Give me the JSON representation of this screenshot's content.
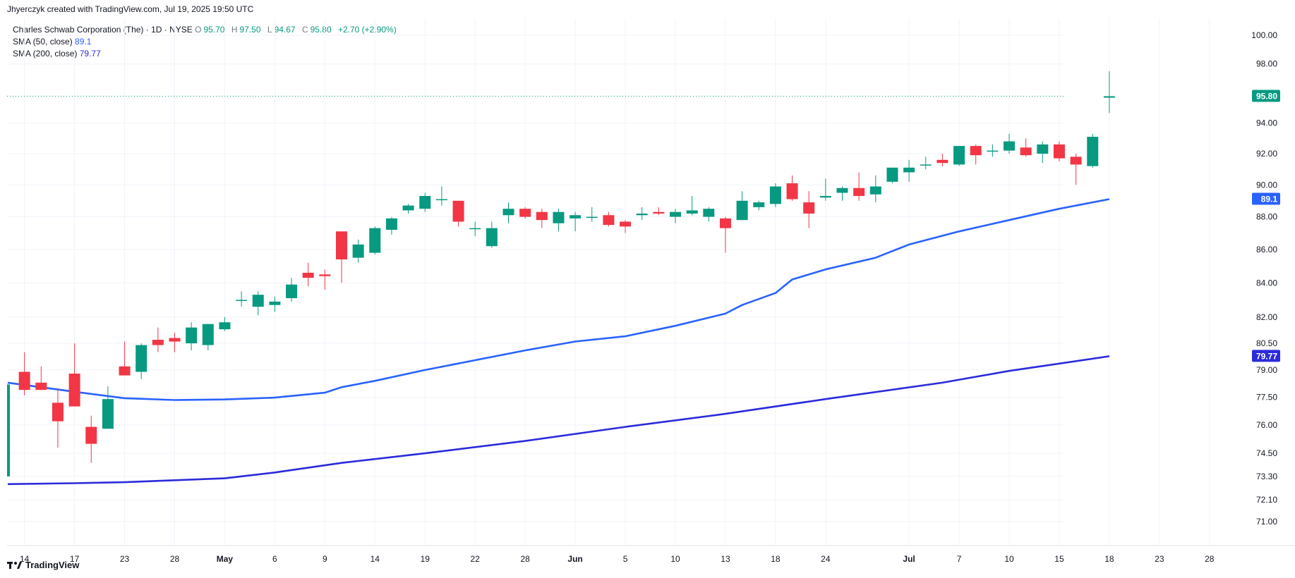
{
  "header": {
    "attribution": "Jhyerczyk created with TradingView.com, Jul 19, 2025 19:50 UTC"
  },
  "legend": {
    "symbol": "Charles Schwab Corporation (The) · 1D · NYSE",
    "open_label": "O",
    "open": "95.70",
    "high_label": "H",
    "high": "97.50",
    "low_label": "L",
    "low": "94.67",
    "close_label": "C",
    "close": "95.80",
    "change": "+2.70 (+2.90%)",
    "sma50_name": "SMA (50, close)",
    "sma50_value": "89.1",
    "sma200_name": "SMA (200, close)",
    "sma200_value": "79.77"
  },
  "footer": {
    "brand": "TradingView",
    "logo": "tradingview-logo-icon"
  },
  "colors": {
    "up": "#089981",
    "down": "#f23645",
    "sma50": "#2962ff",
    "sma200": "#2b2bdb",
    "grid": "#f0f3fa"
  },
  "chart_data": {
    "type": "candlestick",
    "title": "Charles Schwab Corporation (The) · 1D · NYSE",
    "y_axis": {
      "scale": "log",
      "position": "right",
      "ticks": [
        "100.00",
        "98.00",
        "94.00",
        "92.00",
        "90.00",
        "88.00",
        "86.00",
        "84.00",
        "82.00",
        "80.50",
        "79.00",
        "77.50",
        "76.00",
        "74.50",
        "73.30",
        "72.10",
        "71.00"
      ],
      "range": [
        70.3,
        101.2
      ]
    },
    "x_axis": {
      "ticks": [
        {
          "date": "2025-04-14",
          "label": "14"
        },
        {
          "date": "2025-04-17",
          "label": "17"
        },
        {
          "date": "2025-04-23",
          "label": "23"
        },
        {
          "date": "2025-04-28",
          "label": "28"
        },
        {
          "date": "2025-05-01",
          "label": "May"
        },
        {
          "date": "2025-05-06",
          "label": "6"
        },
        {
          "date": "2025-05-09",
          "label": "9"
        },
        {
          "date": "2025-05-14",
          "label": "14"
        },
        {
          "date": "2025-05-19",
          "label": "19"
        },
        {
          "date": "2025-05-22",
          "label": "22"
        },
        {
          "date": "2025-05-28",
          "label": "28"
        },
        {
          "date": "2025-06-02",
          "label": "Jun"
        },
        {
          "date": "2025-06-05",
          "label": "5"
        },
        {
          "date": "2025-06-10",
          "label": "10"
        },
        {
          "date": "2025-06-13",
          "label": "13"
        },
        {
          "date": "2025-06-18",
          "label": "18"
        },
        {
          "date": "2025-06-24",
          "label": "24"
        },
        {
          "date": "2025-07-01",
          "label": "Jul"
        },
        {
          "date": "2025-07-07",
          "label": "7"
        },
        {
          "date": "2025-07-10",
          "label": "10"
        },
        {
          "date": "2025-07-15",
          "label": "15"
        },
        {
          "date": "2025-07-18",
          "label": "18"
        },
        {
          "date": "2025-07-23",
          "label": "23"
        },
        {
          "date": "2025-07-28",
          "label": "28"
        }
      ]
    },
    "last_price": 95.8,
    "last_price_label": "95.80",
    "grid": true,
    "candles": [
      {
        "date": "2025-04-11",
        "o": 73.3,
        "h": 78.2,
        "l": 73.3,
        "c": 78.2
      },
      {
        "date": "2025-04-14",
        "o": 78.9,
        "h": 80.0,
        "l": 77.6,
        "c": 77.9
      },
      {
        "date": "2025-04-15",
        "o": 78.3,
        "h": 79.2,
        "l": 77.9,
        "c": 77.9
      },
      {
        "date": "2025-04-16",
        "o": 77.2,
        "h": 78.0,
        "l": 74.8,
        "c": 76.2
      },
      {
        "date": "2025-04-17",
        "o": 78.8,
        "h": 80.5,
        "l": 77.0,
        "c": 77.0
      },
      {
        "date": "2025-04-21",
        "o": 75.9,
        "h": 76.5,
        "l": 74.0,
        "c": 75.0
      },
      {
        "date": "2025-04-22",
        "o": 75.8,
        "h": 78.1,
        "l": 75.8,
        "c": 77.4
      },
      {
        "date": "2025-04-23",
        "o": 79.2,
        "h": 80.6,
        "l": 78.7,
        "c": 78.7
      },
      {
        "date": "2025-04-24",
        "o": 78.9,
        "h": 80.5,
        "l": 78.5,
        "c": 80.4
      },
      {
        "date": "2025-04-25",
        "o": 80.7,
        "h": 81.4,
        "l": 80.0,
        "c": 80.4
      },
      {
        "date": "2025-04-28",
        "o": 80.8,
        "h": 81.1,
        "l": 80.0,
        "c": 80.6
      },
      {
        "date": "2025-04-29",
        "o": 80.5,
        "h": 81.7,
        "l": 80.1,
        "c": 81.4
      },
      {
        "date": "2025-04-30",
        "o": 80.4,
        "h": 81.6,
        "l": 80.1,
        "c": 81.6
      },
      {
        "date": "2025-05-01",
        "o": 81.3,
        "h": 82.0,
        "l": 81.2,
        "c": 81.7
      },
      {
        "date": "2025-05-02",
        "o": 83.0,
        "h": 83.5,
        "l": 82.6,
        "c": 83.0
      },
      {
        "date": "2025-05-05",
        "o": 82.6,
        "h": 83.5,
        "l": 82.1,
        "c": 83.3
      },
      {
        "date": "2025-05-06",
        "o": 82.7,
        "h": 83.2,
        "l": 82.3,
        "c": 82.9
      },
      {
        "date": "2025-05-07",
        "o": 83.1,
        "h": 84.3,
        "l": 82.9,
        "c": 83.9
      },
      {
        "date": "2025-05-08",
        "o": 84.6,
        "h": 85.2,
        "l": 83.8,
        "c": 84.3
      },
      {
        "date": "2025-05-09",
        "o": 84.5,
        "h": 84.8,
        "l": 83.6,
        "c": 84.4
      },
      {
        "date": "2025-05-12",
        "o": 87.1,
        "h": 87.1,
        "l": 84.0,
        "c": 85.4
      },
      {
        "date": "2025-05-13",
        "o": 85.5,
        "h": 86.6,
        "l": 85.2,
        "c": 86.3
      },
      {
        "date": "2025-05-14",
        "o": 85.8,
        "h": 87.4,
        "l": 85.7,
        "c": 87.3
      },
      {
        "date": "2025-05-15",
        "o": 87.2,
        "h": 88.0,
        "l": 86.9,
        "c": 87.9
      },
      {
        "date": "2025-05-16",
        "o": 88.4,
        "h": 88.8,
        "l": 88.2,
        "c": 88.7
      },
      {
        "date": "2025-05-19",
        "o": 88.5,
        "h": 89.5,
        "l": 88.3,
        "c": 89.3
      },
      {
        "date": "2025-05-20",
        "o": 89.1,
        "h": 89.9,
        "l": 88.7,
        "c": 89.1
      },
      {
        "date": "2025-05-21",
        "o": 89.0,
        "h": 89.0,
        "l": 87.4,
        "c": 87.7
      },
      {
        "date": "2025-05-22",
        "o": 87.3,
        "h": 87.7,
        "l": 86.8,
        "c": 87.3
      },
      {
        "date": "2025-05-23",
        "o": 86.2,
        "h": 87.7,
        "l": 86.1,
        "c": 87.3
      },
      {
        "date": "2025-05-27",
        "o": 88.1,
        "h": 88.9,
        "l": 87.6,
        "c": 88.5
      },
      {
        "date": "2025-05-28",
        "o": 88.5,
        "h": 88.6,
        "l": 87.9,
        "c": 88.0
      },
      {
        "date": "2025-05-29",
        "o": 88.3,
        "h": 88.5,
        "l": 87.3,
        "c": 87.8
      },
      {
        "date": "2025-05-30",
        "o": 87.6,
        "h": 88.5,
        "l": 87.1,
        "c": 88.3
      },
      {
        "date": "2025-06-02",
        "o": 87.9,
        "h": 88.3,
        "l": 87.1,
        "c": 88.1
      },
      {
        "date": "2025-06-03",
        "o": 88.0,
        "h": 88.6,
        "l": 87.7,
        "c": 88.0
      },
      {
        "date": "2025-06-04",
        "o": 88.1,
        "h": 88.3,
        "l": 87.4,
        "c": 87.5
      },
      {
        "date": "2025-06-05",
        "o": 87.7,
        "h": 87.8,
        "l": 87.0,
        "c": 87.4
      },
      {
        "date": "2025-06-06",
        "o": 88.1,
        "h": 88.6,
        "l": 87.8,
        "c": 88.2
      },
      {
        "date": "2025-06-09",
        "o": 88.3,
        "h": 88.6,
        "l": 88.1,
        "c": 88.2
      },
      {
        "date": "2025-06-10",
        "o": 88.0,
        "h": 88.5,
        "l": 87.6,
        "c": 88.3
      },
      {
        "date": "2025-06-11",
        "o": 88.2,
        "h": 89.3,
        "l": 88.1,
        "c": 88.4
      },
      {
        "date": "2025-06-12",
        "o": 88.0,
        "h": 88.6,
        "l": 87.7,
        "c": 88.5
      },
      {
        "date": "2025-06-13",
        "o": 87.9,
        "h": 88.0,
        "l": 85.8,
        "c": 87.3
      },
      {
        "date": "2025-06-16",
        "o": 87.8,
        "h": 89.6,
        "l": 87.8,
        "c": 89.0
      },
      {
        "date": "2025-06-17",
        "o": 88.6,
        "h": 89.0,
        "l": 88.4,
        "c": 88.9
      },
      {
        "date": "2025-06-18",
        "o": 88.8,
        "h": 90.1,
        "l": 88.6,
        "c": 89.9
      },
      {
        "date": "2025-06-20",
        "o": 90.1,
        "h": 90.6,
        "l": 89.0,
        "c": 89.1
      },
      {
        "date": "2025-06-23",
        "o": 88.9,
        "h": 89.6,
        "l": 87.3,
        "c": 88.2
      },
      {
        "date": "2025-06-24",
        "o": 89.2,
        "h": 90.4,
        "l": 89.0,
        "c": 89.3
      },
      {
        "date": "2025-06-25",
        "o": 89.5,
        "h": 89.9,
        "l": 89.0,
        "c": 89.8
      },
      {
        "date": "2025-06-26",
        "o": 89.8,
        "h": 90.8,
        "l": 89.0,
        "c": 89.3
      },
      {
        "date": "2025-06-27",
        "o": 89.4,
        "h": 90.6,
        "l": 88.9,
        "c": 89.9
      },
      {
        "date": "2025-06-30",
        "o": 90.2,
        "h": 91.1,
        "l": 90.1,
        "c": 91.1
      },
      {
        "date": "2025-07-01",
        "o": 90.8,
        "h": 91.6,
        "l": 90.2,
        "c": 91.1
      },
      {
        "date": "2025-07-02",
        "o": 91.3,
        "h": 91.8,
        "l": 91.0,
        "c": 91.3
      },
      {
        "date": "2025-07-03",
        "o": 91.6,
        "h": 92.0,
        "l": 91.2,
        "c": 91.4
      },
      {
        "date": "2025-07-07",
        "o": 91.3,
        "h": 92.5,
        "l": 91.2,
        "c": 92.5
      },
      {
        "date": "2025-07-08",
        "o": 92.5,
        "h": 92.6,
        "l": 91.3,
        "c": 91.9
      },
      {
        "date": "2025-07-09",
        "o": 92.2,
        "h": 92.6,
        "l": 91.8,
        "c": 92.2
      },
      {
        "date": "2025-07-10",
        "o": 92.2,
        "h": 93.3,
        "l": 92.0,
        "c": 92.8
      },
      {
        "date": "2025-07-11",
        "o": 92.4,
        "h": 93.0,
        "l": 91.8,
        "c": 91.9
      },
      {
        "date": "2025-07-14",
        "o": 92.0,
        "h": 92.8,
        "l": 91.4,
        "c": 92.6
      },
      {
        "date": "2025-07-15",
        "o": 92.6,
        "h": 92.8,
        "l": 91.5,
        "c": 91.7
      },
      {
        "date": "2025-07-16",
        "o": 91.8,
        "h": 92.0,
        "l": 90.0,
        "c": 91.3
      },
      {
        "date": "2025-07-17",
        "o": 91.2,
        "h": 93.3,
        "l": 91.1,
        "c": 93.1
      },
      {
        "date": "2025-07-18",
        "o": 95.7,
        "h": 97.5,
        "l": 94.67,
        "c": 95.8
      }
    ],
    "series": [
      {
        "name": "SMA (50, close)",
        "color": "#2962ff",
        "last": 89.1,
        "points": [
          [
            "2025-04-11",
            78.3
          ],
          [
            "2025-04-17",
            77.8
          ],
          [
            "2025-04-23",
            77.45
          ],
          [
            "2025-04-28",
            77.35
          ],
          [
            "2025-05-01",
            77.38
          ],
          [
            "2025-05-06",
            77.48
          ],
          [
            "2025-05-09",
            77.75
          ],
          [
            "2025-05-12",
            78.05
          ],
          [
            "2025-05-14",
            78.4
          ],
          [
            "2025-05-19",
            79.0
          ],
          [
            "2025-05-22",
            79.55
          ],
          [
            "2025-05-28",
            80.1
          ],
          [
            "2025-06-02",
            80.6
          ],
          [
            "2025-06-05",
            80.9
          ],
          [
            "2025-06-10",
            81.5
          ],
          [
            "2025-06-13",
            82.2
          ],
          [
            "2025-06-16",
            82.7
          ],
          [
            "2025-06-18",
            83.4
          ],
          [
            "2025-06-20",
            84.2
          ],
          [
            "2025-06-24",
            84.8
          ],
          [
            "2025-06-27",
            85.5
          ],
          [
            "2025-07-01",
            86.3
          ],
          [
            "2025-07-07",
            87.1
          ],
          [
            "2025-07-10",
            87.8
          ],
          [
            "2025-07-15",
            88.5
          ],
          [
            "2025-07-18",
            89.1
          ]
        ]
      },
      {
        "name": "SMA (200, close)",
        "color": "#2b2bdb",
        "last": 79.77,
        "points": [
          [
            "2025-04-11",
            72.9
          ],
          [
            "2025-04-17",
            72.95
          ],
          [
            "2025-04-23",
            73.0
          ],
          [
            "2025-04-28",
            73.1
          ],
          [
            "2025-05-01",
            73.2
          ],
          [
            "2025-05-06",
            73.5
          ],
          [
            "2025-05-12",
            74.0
          ],
          [
            "2025-05-19",
            74.5
          ],
          [
            "2025-05-28",
            75.15
          ],
          [
            "2025-06-05",
            75.9
          ],
          [
            "2025-06-13",
            76.6
          ],
          [
            "2025-06-24",
            77.4
          ],
          [
            "2025-07-03",
            78.3
          ],
          [
            "2025-07-10",
            78.95
          ],
          [
            "2025-07-18",
            79.77
          ]
        ]
      }
    ]
  }
}
